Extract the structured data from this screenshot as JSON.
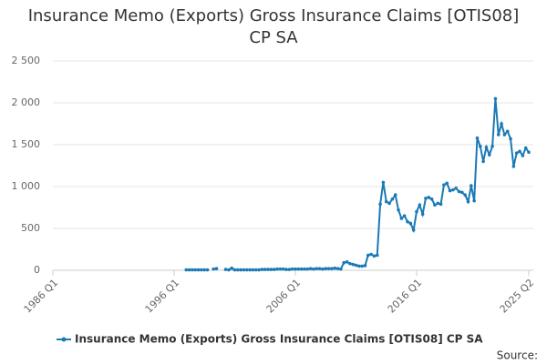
{
  "chart_data": {
    "type": "line",
    "title": "Insurance Memo (Exports) Gross Insurance Claims [OTIS08] CP SA",
    "source": "Source:",
    "x": [
      1997,
      1997.25,
      1997.5,
      1997.75,
      1998,
      1998.25,
      1998.5,
      1998.75,
      1999,
      1999.25,
      1999.5,
      1999.75,
      2000,
      2000.25,
      2000.5,
      2000.75,
      2001,
      2001.25,
      2001.5,
      2001.75,
      2002,
      2002.25,
      2002.5,
      2002.75,
      2003,
      2003.25,
      2003.5,
      2003.75,
      2004,
      2004.25,
      2004.5,
      2004.75,
      2005,
      2005.25,
      2005.5,
      2005.75,
      2006,
      2006.25,
      2006.5,
      2006.75,
      2007,
      2007.25,
      2007.5,
      2007.75,
      2008,
      2008.25,
      2008.5,
      2008.75,
      2009,
      2009.25,
      2009.5,
      2009.75,
      2010,
      2010.25,
      2010.5,
      2010.75,
      2011,
      2011.25,
      2011.5,
      2011.75,
      2012,
      2012.25,
      2012.5,
      2012.75,
      2013,
      2013.25,
      2013.5,
      2013.75,
      2014,
      2014.25,
      2014.5,
      2014.75,
      2015,
      2015.25,
      2015.5,
      2015.75,
      2016,
      2016.25,
      2016.5,
      2016.75,
      2017,
      2017.25,
      2017.5,
      2017.75,
      2018,
      2018.25,
      2018.5,
      2018.75,
      2019,
      2019.25,
      2019.5,
      2019.75,
      2020,
      2020.25,
      2020.5,
      2020.75,
      2021,
      2021.25,
      2021.5,
      2021.75,
      2022,
      2022.25,
      2022.5,
      2022.75,
      2023,
      2023.25,
      2023.5,
      2023.75,
      2024,
      2024.25,
      2024.5,
      2024.75,
      2025,
      2025.25
    ],
    "series": [
      {
        "name": "Insurance Memo (Exports) Gross Insurance Claims [OTIS08] CP SA",
        "color": "#1a7ab5",
        "values": [
          5,
          5,
          5,
          5,
          5,
          5,
          5,
          5,
          null,
          15,
          20,
          null,
          null,
          10,
          5,
          25,
          5,
          5,
          5,
          5,
          5,
          5,
          5,
          5,
          5,
          10,
          10,
          10,
          10,
          10,
          15,
          15,
          15,
          10,
          10,
          15,
          15,
          15,
          15,
          15,
          15,
          20,
          15,
          20,
          20,
          15,
          20,
          20,
          20,
          25,
          20,
          15,
          90,
          100,
          80,
          70,
          60,
          50,
          50,
          55,
          180,
          190,
          170,
          180,
          790,
          1050,
          820,
          800,
          850,
          900,
          720,
          620,
          650,
          580,
          560,
          480,
          700,
          780,
          670,
          860,
          870,
          850,
          780,
          800,
          790,
          1020,
          1040,
          950,
          960,
          980,
          940,
          930,
          900,
          820,
          1010,
          830,
          1580,
          1480,
          1300,
          1470,
          1380,
          1480,
          2050,
          1620,
          1750,
          1620,
          1660,
          1570,
          1240,
          1400,
          1420,
          1370,
          1460,
          1410
        ]
      }
    ],
    "xlim": [
      1986,
      2025.25
    ],
    "xticks": [
      {
        "value": 1986,
        "label": "1986 Q1"
      },
      {
        "value": 1996,
        "label": "1996 Q1"
      },
      {
        "value": 2006,
        "label": "2006 Q1"
      },
      {
        "value": 2016,
        "label": "2016 Q1"
      },
      {
        "value": 2025.25,
        "label": "2025 Q2"
      }
    ],
    "ylim": [
      0,
      2500
    ],
    "yticks": [
      0,
      500,
      {
        "value": 1000,
        "label": "1 000"
      },
      {
        "value": 1500,
        "label": "1 500"
      },
      {
        "value": 2000,
        "label": "2 000"
      },
      {
        "value": 2500,
        "label": "2 500"
      }
    ],
    "grid": true
  }
}
